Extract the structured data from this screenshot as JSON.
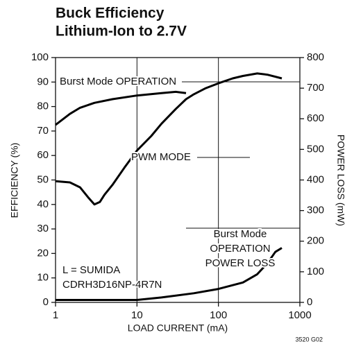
{
  "chart_data": {
    "type": "line",
    "title": "Buck Efficiency",
    "subtitle": "Lithium-Ion to 2.7V",
    "xlabel": "LOAD CURRENT (mA)",
    "ylabel": "EFFICIENCY (%)",
    "y2label": "POWER LOSS (mW)",
    "note": "3520 G02",
    "xscale": "log",
    "xlim": [
      1,
      1000
    ],
    "xticks": [
      1,
      10,
      100,
      1000
    ],
    "ylim": [
      0,
      100
    ],
    "yticks": [
      0,
      10,
      20,
      30,
      40,
      50,
      60,
      70,
      80,
      90,
      100
    ],
    "y2lim": [
      0,
      800
    ],
    "y2ticks": [
      0,
      100,
      200,
      300,
      400,
      500,
      600,
      700,
      800
    ],
    "grid": "x",
    "series": [
      {
        "color": "#000000",
        "x": [
          1,
          1.5,
          2,
          3,
          5,
          10,
          20,
          30,
          40
        ],
        "values": [
          72.5,
          77,
          79.5,
          81.5,
          83,
          84.5,
          85.5,
          86,
          85.5
        ]
      },
      {
        "color": "#000000",
        "x": [
          1,
          1.5,
          2,
          2.5,
          3,
          3.5,
          4,
          5,
          7,
          10,
          15,
          20,
          30,
          40,
          50,
          70,
          100,
          150,
          200,
          300,
          400,
          600
        ],
        "values": [
          49.5,
          49,
          47,
          43,
          40,
          41,
          44,
          48,
          55,
          62,
          68,
          73,
          79,
          83,
          85,
          87.5,
          89.5,
          91.5,
          92.5,
          93.5,
          93,
          91.5
        ]
      },
      {
        "color": "#000000",
        "axis": "y2",
        "x": [
          1,
          3,
          10,
          20,
          50,
          100,
          200,
          300,
          400,
          500,
          600
        ],
        "values": [
          8,
          8,
          8,
          16,
          30,
          44,
          65,
          92,
          128,
          165,
          178
        ]
      }
    ],
    "annotations": [
      {
        "lines": [
          "Burst Mode OPERATION"
        ]
      },
      {
        "lines": [
          "PWM MODE"
        ]
      },
      {
        "lines": [
          "Burst Mode",
          "OPERATION",
          "POWER LOSS"
        ]
      },
      {
        "lines": [
          "L = SUMIDA",
          "CDRH3D16NP-4R7N"
        ]
      }
    ]
  }
}
